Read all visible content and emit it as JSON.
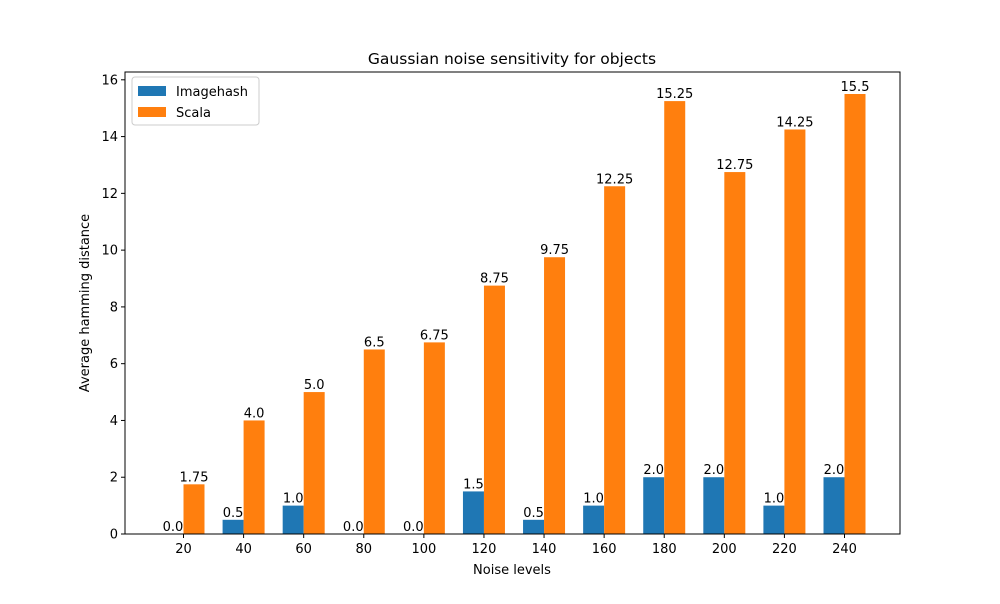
{
  "chart_data": {
    "type": "bar",
    "title": "Gaussian noise sensitivity for objects",
    "xlabel": "Noise levels",
    "ylabel": "Average hamming distance",
    "categories": [
      "20",
      "40",
      "60",
      "80",
      "100",
      "120",
      "140",
      "160",
      "180",
      "200",
      "220",
      "240"
    ],
    "series": [
      {
        "name": "Imagehash",
        "color": "#1f77b4",
        "values": [
          0.0,
          0.5,
          1.0,
          0.0,
          0.0,
          1.5,
          0.5,
          1.0,
          2.0,
          2.0,
          1.0,
          2.0
        ],
        "labels": [
          "0.0",
          "0.5",
          "1.0",
          "0.0",
          "0.0",
          "1.5",
          "0.5",
          "1.0",
          "2.0",
          "2.0",
          "1.0",
          "2.0"
        ]
      },
      {
        "name": "Scala",
        "color": "#ff7f0e",
        "values": [
          1.75,
          4.0,
          5.0,
          6.5,
          6.75,
          8.75,
          9.75,
          12.25,
          15.25,
          12.75,
          14.25,
          15.5
        ],
        "labels": [
          "1.75",
          "4.0",
          "5.0",
          "6.5",
          "6.75",
          "8.75",
          "9.75",
          "12.25",
          "15.25",
          "12.75",
          "14.25",
          "15.5"
        ]
      }
    ],
    "ylim": [
      0,
      16.275
    ],
    "yticks": [
      "0",
      "2",
      "4",
      "6",
      "8",
      "10",
      "12",
      "14",
      "16"
    ],
    "grid": false,
    "legend_position": "top-left"
  }
}
